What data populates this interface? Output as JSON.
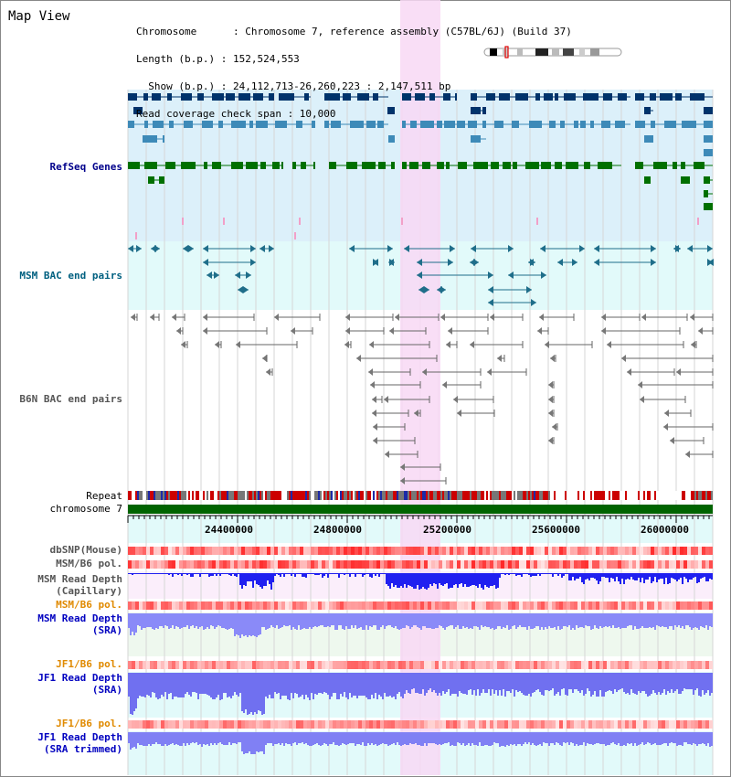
{
  "window": {
    "title": "Map View"
  },
  "info": {
    "chromosome_line": "Chromosome      : Chromosome 7, reference assembly (C57BL/6J) (Build 37)",
    "length_line": "Length (b.p.) : 152,524,553",
    "show_line": "  Show (b.p.) : 24,112,713-26,260,223 : 2,147,511 bp",
    "coverage_line": "Read coverage check span : 10,000"
  },
  "tracks": {
    "refseq": "RefSeq Genes",
    "msm_bac": "MSM BAC end pairs",
    "b6n_bac": "B6N BAC end pairs",
    "repeat": "Repeat",
    "chromosome": "chromosome 7",
    "dbsnp": "dbSNP(Mouse)",
    "msm_b6_pol_1": "MSM/B6 pol.",
    "msm_depth_cap_1": "MSM Read Depth",
    "msm_depth_cap_2": "(Capillary)",
    "msm_b6_pol_2": "MSM/B6 pol.",
    "msm_depth_sra_1": "MSM Read Depth",
    "msm_depth_sra_2": "(SRA)",
    "jf1_b6_pol_1": "JF1/B6 pol.",
    "jf1_depth_sra_1": "JF1 Read Depth",
    "jf1_depth_sra_2": "(SRA)",
    "jf1_b6_pol_2": "JF1/B6 pol.",
    "jf1_depth_trim_1": "JF1 Read Depth",
    "jf1_depth_trim_2": "(SRA trimmed)"
  },
  "axis": {
    "ticks": [
      "24400000",
      "24800000",
      "25200000",
      "25600000",
      "26000000"
    ]
  },
  "colors": {
    "refseq_bg": "#dcf0fa",
    "msm_bac_bg": "#e2fafa",
    "highlight": "#f8d8f4",
    "navy_gene": "#00336b",
    "steel_gene": "#3d8ab8",
    "green_gene": "#007000",
    "chromosome_bar": "#006400",
    "depth_blue": "#2020f0"
  }
}
